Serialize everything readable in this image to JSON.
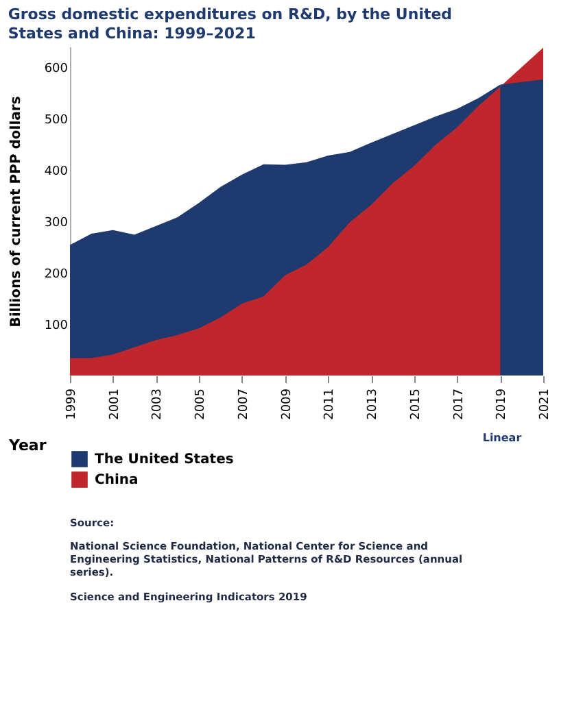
{
  "chart_data": {
    "type": "area",
    "title": "Gross domestic expenditures on R&D, by the United States and China: 1999–2021",
    "xlabel": "Year",
    "ylabel": "Billions of current PPP dollars",
    "x": [
      1999,
      2000,
      2001,
      2002,
      2003,
      2004,
      2005,
      2006,
      2007,
      2008,
      2009,
      2010,
      2011,
      2012,
      2013,
      2014,
      2015,
      2016,
      2017,
      2018,
      2019,
      2020,
      2021
    ],
    "series": [
      {
        "name": "The United States",
        "color": "#1f3a6e",
        "values": [
          254,
          276,
          283,
          274,
          291,
          308,
          336,
          367,
          391,
          411,
          410,
          415,
          428,
          435,
          453,
          470,
          487,
          504,
          519,
          540,
          566,
          null,
          null
        ]
      },
      {
        "name": "China",
        "color": "#c0272d",
        "values": [
          34,
          34,
          41,
          55,
          69,
          79,
          92,
          113,
          140,
          154,
          195,
          216,
          250,
          298,
          332,
          374,
          408,
          449,
          483,
          525,
          562,
          600,
          638
        ]
      },
      {
        "color": "#1f3a6e",
        "values": [
          null,
          null,
          null,
          null,
          null,
          null,
          null,
          null,
          null,
          null,
          null,
          null,
          null,
          null,
          null,
          null,
          null,
          null,
          null,
          null,
          566,
          571,
          576
        ]
      }
    ],
    "xlim": [
      1999,
      2021
    ],
    "xticks": [
      1999,
      2001,
      2003,
      2005,
      2007,
      2009,
      2011,
      2013,
      2015,
      2017,
      2019,
      2021
    ],
    "ylim": [
      0,
      640
    ],
    "yticks": [
      100,
      200,
      300,
      400,
      500,
      600
    ],
    "grid": false,
    "legend": "bottom left",
    "annotations": [
      "Linear",
      "Source:",
      "National Science Foundation, National Center for Science and Engineering Statistics, National Patterns of R&D Resources (annual series).",
      "Science and Engineering Indicators 2019"
    ]
  }
}
